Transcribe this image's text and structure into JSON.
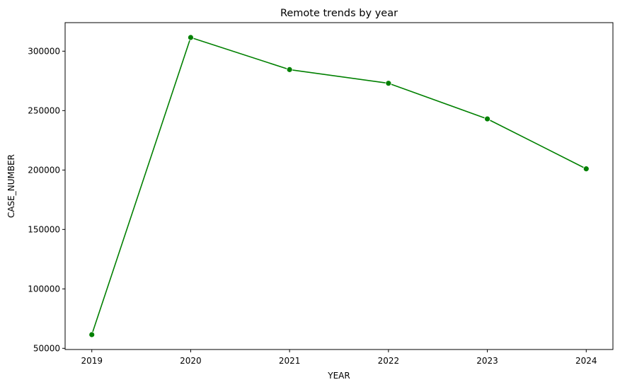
{
  "chart_data": {
    "type": "line",
    "title": "Remote trends by year",
    "xlabel": "YEAR",
    "ylabel": "CASE_NUMBER",
    "categories": [
      "2019",
      "2020",
      "2021",
      "2022",
      "2023",
      "2024"
    ],
    "series": [
      {
        "values": [
          61500,
          311500,
          284500,
          273000,
          243000,
          201000
        ],
        "color": "#008000",
        "marker": "circle"
      }
    ],
    "xlim": [
      2018.73,
      2024.27
    ],
    "ylim": [
      49000,
      324000
    ],
    "yticks": [
      50000,
      100000,
      150000,
      200000,
      250000,
      300000
    ],
    "ytick_labels": [
      "50000",
      "100000",
      "150000",
      "200000",
      "250000",
      "300000"
    ],
    "grid": false,
    "legend": "none"
  }
}
